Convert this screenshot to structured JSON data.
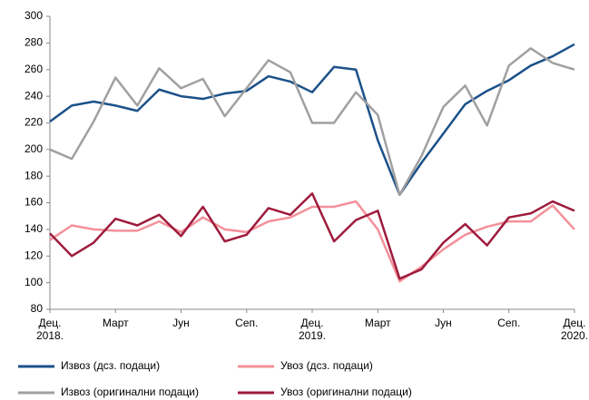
{
  "chart_data": {
    "type": "line",
    "categories": [
      "Дец.\n2018.",
      null,
      null,
      "Март",
      null,
      null,
      "Јун",
      null,
      null,
      "Сеп.",
      null,
      null,
      "Дец.\n2019.",
      null,
      null,
      "Март",
      null,
      null,
      "Јун",
      null,
      null,
      "Сеп.",
      null,
      null,
      "Дец.\n2020."
    ],
    "series": [
      {
        "name": "Извоз (дсз. подаци)",
        "color": "#1b5189",
        "values": [
          221,
          233,
          236,
          233,
          229,
          245,
          240,
          238,
          242,
          244,
          255,
          251,
          243,
          262,
          260,
          207,
          166,
          190,
          212,
          234,
          244,
          252,
          263,
          270,
          279
        ]
      },
      {
        "name": "Увоз (дсз. подаци)",
        "color": "#f4909a",
        "values": [
          132,
          143,
          140,
          139,
          139,
          146,
          138,
          149,
          140,
          138,
          146,
          149,
          157,
          157,
          161,
          140,
          101,
          112,
          125,
          136,
          142,
          146,
          146,
          158,
          140
        ]
      },
      {
        "name": "Извоз (оригинални подаци)",
        "color": "#a0a0a0",
        "values": [
          200,
          193,
          221,
          254,
          233,
          261,
          246,
          253,
          225,
          246,
          267,
          258,
          220,
          220,
          243,
          226,
          166,
          195,
          232,
          248,
          218,
          263,
          276,
          265,
          260
        ]
      },
      {
        "name": "Увоз (оригинални подаци)",
        "color": "#9e1b3c",
        "values": [
          137,
          120,
          130,
          148,
          143,
          151,
          135,
          157,
          131,
          136,
          156,
          151,
          167,
          131,
          147,
          154,
          103,
          110,
          130,
          144,
          128,
          149,
          152,
          161,
          154
        ]
      }
    ],
    "ylim": [
      80,
      300
    ],
    "yticks": [
      80,
      100,
      120,
      140,
      160,
      180,
      200,
      220,
      240,
      260,
      280,
      300
    ]
  }
}
